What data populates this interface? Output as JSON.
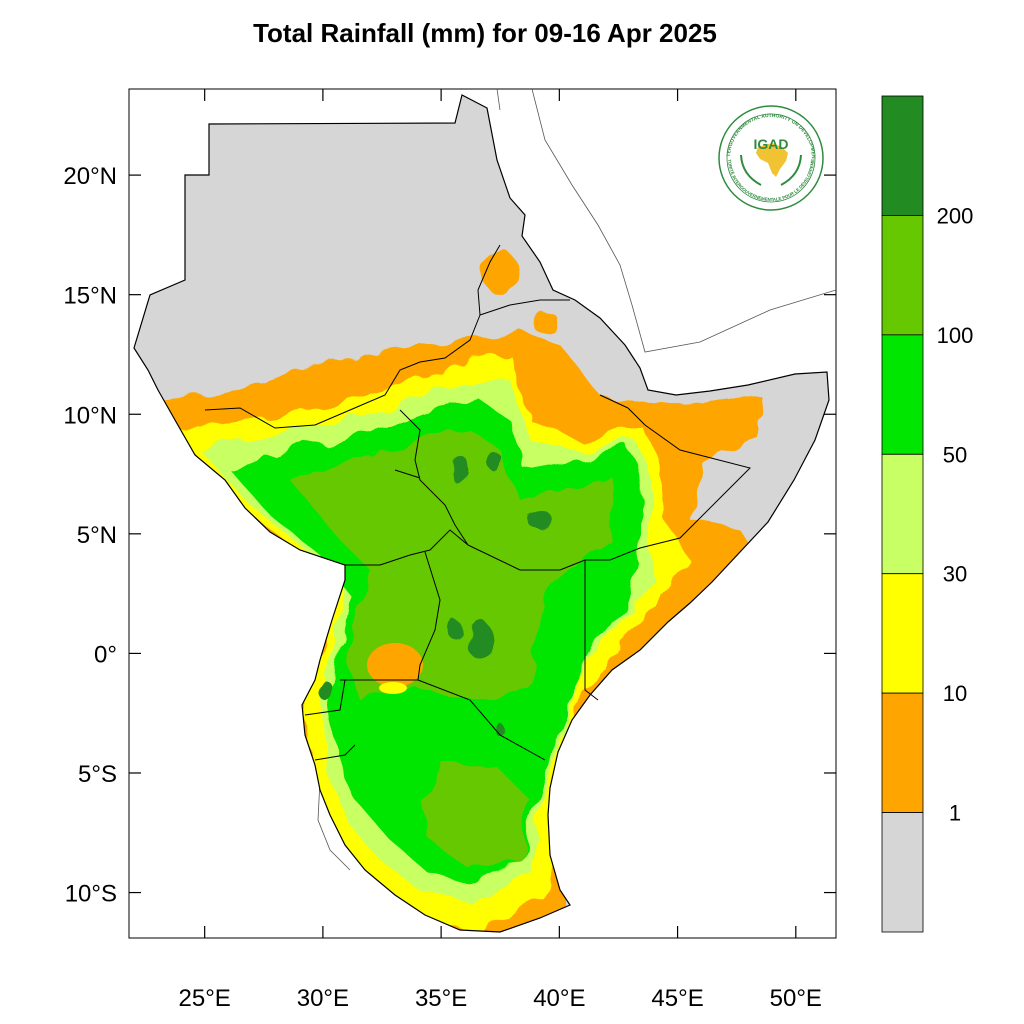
{
  "title": "Total Rainfall (mm) for 09-16 Apr 2025",
  "map": {
    "lon_range": [
      21.8,
      51.7
    ],
    "lat_range": [
      -11.9,
      23.6
    ],
    "lat_ticks": [
      {
        "value": 20,
        "label": "20°N"
      },
      {
        "value": 15,
        "label": "15°N"
      },
      {
        "value": 10,
        "label": "10°N"
      },
      {
        "value": 5,
        "label": "5°N"
      },
      {
        "value": 0,
        "label": "0°"
      },
      {
        "value": -5,
        "label": "5°S"
      },
      {
        "value": -10,
        "label": "10°S"
      }
    ],
    "lon_ticks": [
      {
        "value": 25,
        "label": "25°E"
      },
      {
        "value": 30,
        "label": "30°E"
      },
      {
        "value": 35,
        "label": "35°E"
      },
      {
        "value": 40,
        "label": "40°E"
      },
      {
        "value": 45,
        "label": "45°E"
      },
      {
        "value": 50,
        "label": "50°E"
      }
    ]
  },
  "legend": {
    "classes": [
      {
        "range": "<1",
        "color": "#d6d6d6"
      },
      {
        "range": "1-10",
        "color": "#ffa500"
      },
      {
        "range": "10-30",
        "color": "#ffff00"
      },
      {
        "range": "30-50",
        "color": "#c8ff64"
      },
      {
        "range": "50-100",
        "color": "#00e600"
      },
      {
        "range": "100-200",
        "color": "#66c800"
      },
      {
        "range": ">200",
        "color": "#228b22"
      }
    ],
    "boundary_labels": [
      "1",
      "10",
      "30",
      "50",
      "100",
      "200"
    ]
  },
  "logo": {
    "acronym": "IGAD",
    "arc_text": "INTERGOVERNMENTAL AUTHORITY ON DEVELOPMENT",
    "arc_text_fr": "AUTORITÉ INTERGOUVERNEMENTALE POUR LE DÉVELOPPEMENT",
    "colors": {
      "ring": "#2e8b3e",
      "text": "#2e8b3e",
      "africa": "#f1c232"
    }
  }
}
